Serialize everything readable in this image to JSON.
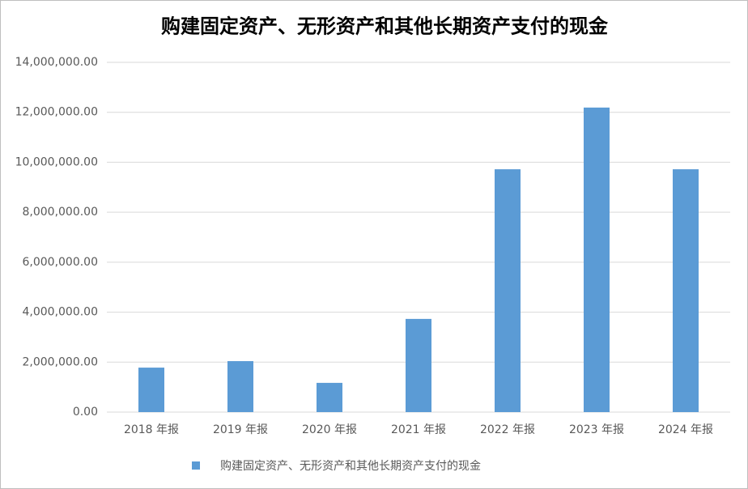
{
  "chart_data": {
    "type": "bar",
    "title": "购建固定资产、无形资产和其他长期资产支付的现金",
    "categories": [
      "2018 年报",
      "2019 年报",
      "2020 年报",
      "2021 年报",
      "2022 年报",
      "2023 年报",
      "2024 年报"
    ],
    "series": [
      {
        "name": "购建固定资产、无形资产和其他长期资产支付的现金",
        "color": "#5b9bd5",
        "values": [
          1780000,
          2040000,
          1170000,
          3730000,
          9720000,
          12190000,
          9720000
        ]
      }
    ],
    "ylim": [
      0,
      14000000
    ],
    "yticks": [
      {
        "value": 0,
        "label": "0.00"
      },
      {
        "value": 2000000,
        "label": "2,000,000.00"
      },
      {
        "value": 4000000,
        "label": "4,000,000.00"
      },
      {
        "value": 6000000,
        "label": "6,000,000.00"
      },
      {
        "value": 8000000,
        "label": "8,000,000.00"
      },
      {
        "value": 10000000,
        "label": "10,000,000.00"
      },
      {
        "value": 12000000,
        "label": "12,000,000.00"
      },
      {
        "value": 14000000,
        "label": "14,000,000.00"
      }
    ],
    "grid": true,
    "legend": "bottom"
  }
}
